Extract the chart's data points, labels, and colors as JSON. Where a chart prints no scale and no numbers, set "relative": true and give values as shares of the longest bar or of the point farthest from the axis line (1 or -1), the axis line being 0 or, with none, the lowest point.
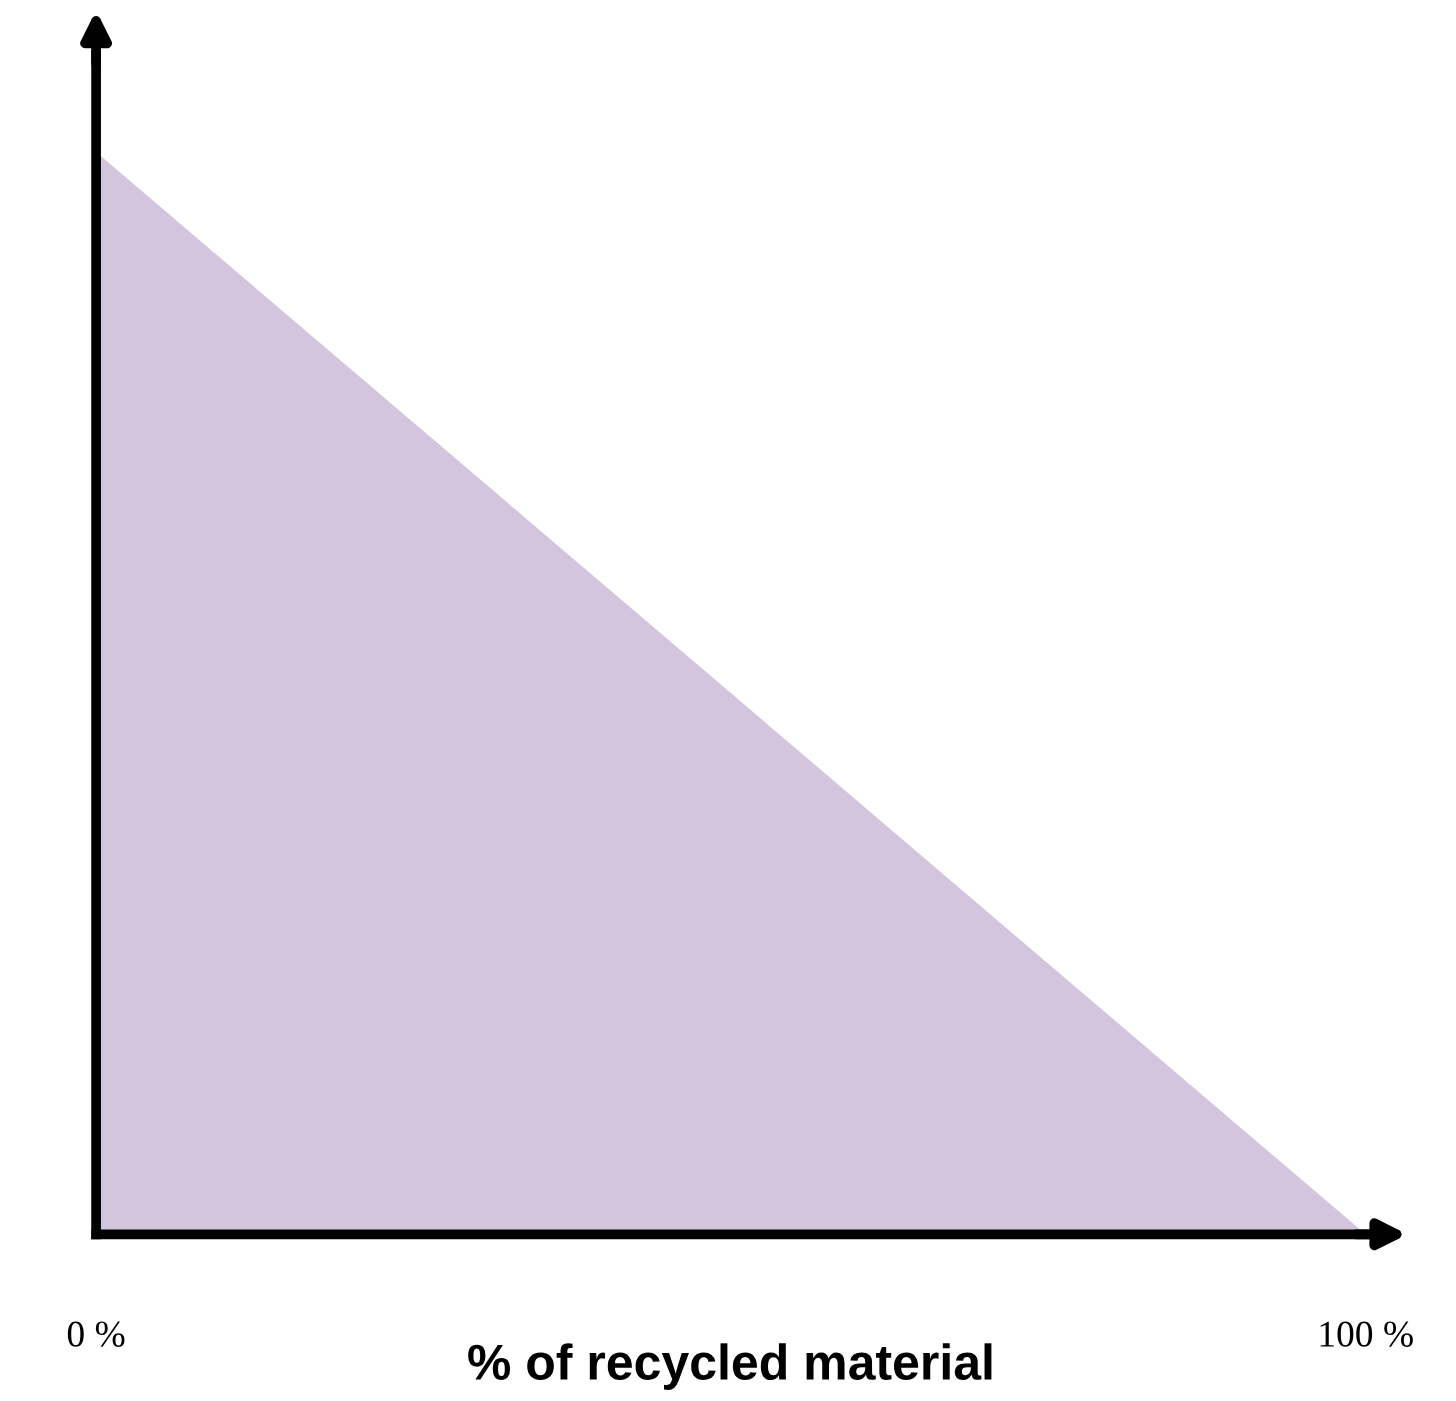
{
  "chart_data": {
    "type": "area",
    "relative": true,
    "xlabel": "% of recycled material",
    "x": [
      0,
      100
    ],
    "series": [
      {
        "color": "#d3c5de",
        "values": [
          1,
          0
        ]
      }
    ],
    "xlim": [
      0,
      100
    ],
    "xticks": [
      {
        "value": 0,
        "label": "0 %"
      },
      {
        "value": 100,
        "label": "100 %"
      }
    ],
    "tick_labels": "x",
    "grid": false,
    "legend": false
  }
}
